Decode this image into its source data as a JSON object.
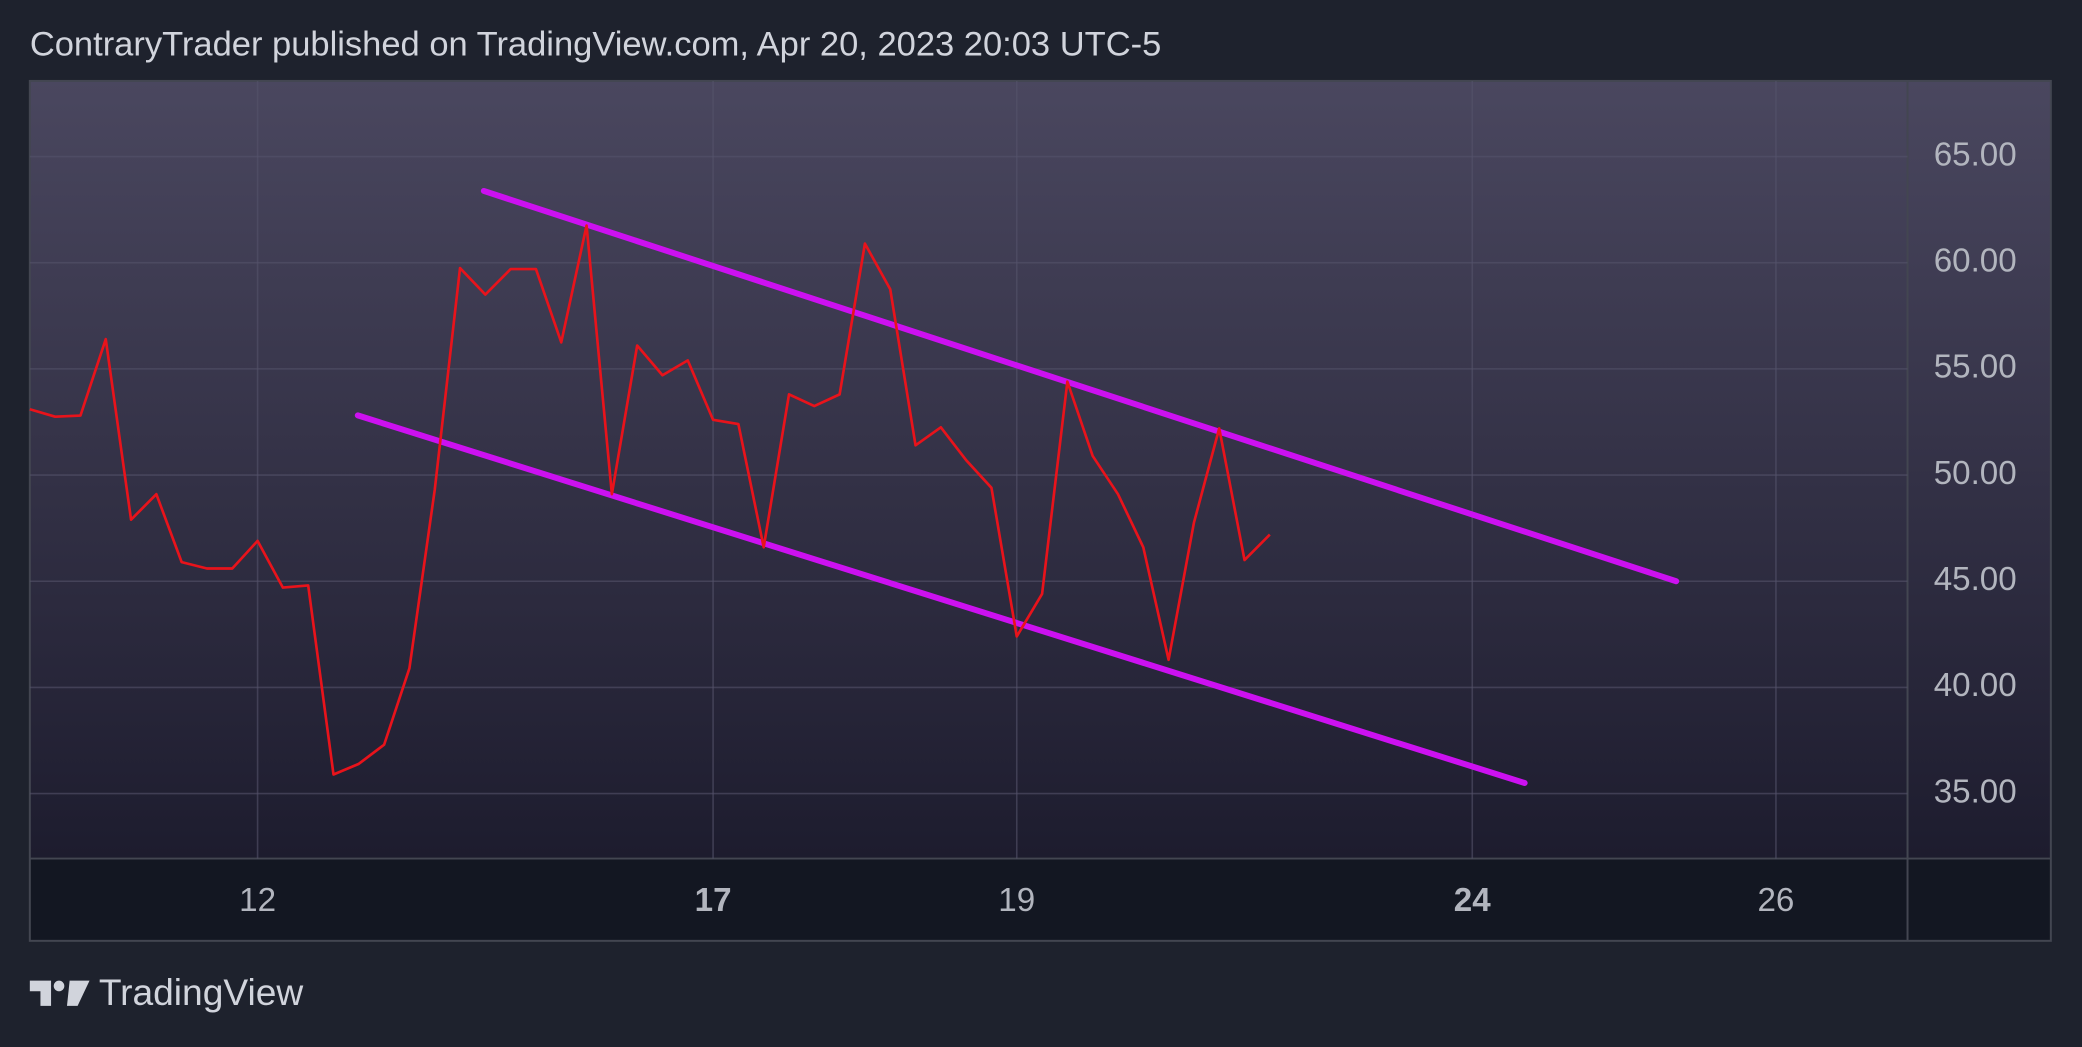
{
  "header": "ContraryTrader published on TradingView.com, Apr 20, 2023 20:03 UTC-5",
  "footer": "TradingView",
  "chart_data": {
    "type": "line",
    "series": [
      {
        "color": "#e8131b",
        "values": [
          53.1,
          52.75,
          52.8,
          56.4,
          47.9,
          49.1,
          45.9,
          45.6,
          45.6,
          46.9,
          44.7,
          44.8,
          35.9,
          36.4,
          37.3,
          40.9,
          49.3,
          59.75,
          58.5,
          59.7,
          59.7,
          56.25,
          61.75,
          49.1,
          56.1,
          54.7,
          55.4,
          52.6,
          52.4,
          46.6,
          53.8,
          53.25,
          53.8,
          60.9,
          58.75,
          51.4,
          52.25,
          50.7,
          49.4,
          42.4,
          44.4,
          54.4,
          50.9,
          49.1,
          46.6,
          41.3,
          47.75,
          52.2,
          46.0,
          47.2
        ]
      }
    ],
    "trendlines": [
      {
        "color": "#cc11f0",
        "x": [
          17.94,
          65.06
        ],
        "values": [
          63.38,
          45.0
        ]
      },
      {
        "color": "#cc11f0",
        "x": [
          12.96,
          59.07
        ],
        "values": [
          52.81,
          35.5
        ]
      }
    ],
    "xlim": [
      0,
      74.2
    ],
    "xticks": [
      {
        "value": 9,
        "label": "12"
      },
      {
        "value": 27,
        "label": "17",
        "bold": true
      },
      {
        "value": 39,
        "label": "19"
      },
      {
        "value": 57,
        "label": "24",
        "bold": true
      },
      {
        "value": 69,
        "label": "26"
      }
    ],
    "ylim": [
      31.94,
      68.56
    ],
    "yticks": [
      {
        "value": 35,
        "label": "35.00"
      },
      {
        "value": 40,
        "label": "40.00"
      },
      {
        "value": 45,
        "label": "45.00"
      },
      {
        "value": 50,
        "label": "50.00"
      },
      {
        "value": 55,
        "label": "55.00"
      },
      {
        "value": 60,
        "label": "60.00"
      },
      {
        "value": 65,
        "label": "65.00"
      }
    ],
    "grid": true
  }
}
